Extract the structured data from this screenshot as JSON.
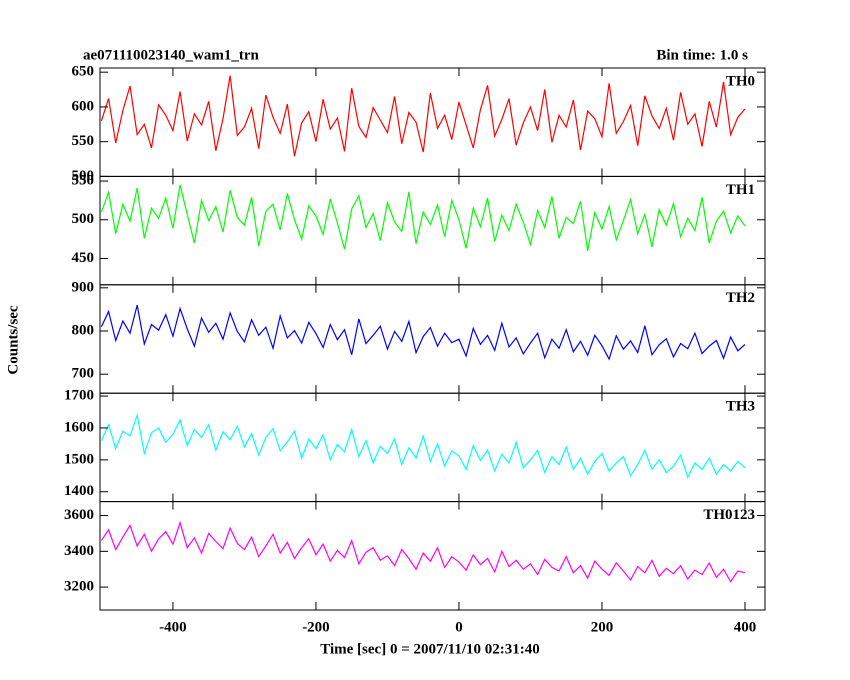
{
  "chart_data": {
    "type": "line",
    "title": "ae071110023140_wam1_trn",
    "subtitle": "Bin time: 1.0 s",
    "xlabel": "Time [sec] 0 = 2007/11/10 02:31:40",
    "ylabel": "Counts/sec",
    "xlim": [
      -502,
      428
    ],
    "xticks": [
      -400,
      -200,
      0,
      200,
      400
    ],
    "x": [
      -500,
      -490,
      -480,
      -470,
      -460,
      -450,
      -440,
      -430,
      -420,
      -410,
      -400,
      -390,
      -380,
      -370,
      -360,
      -350,
      -340,
      -330,
      -320,
      -310,
      -300,
      -290,
      -280,
      -270,
      -260,
      -250,
      -240,
      -230,
      -220,
      -210,
      -200,
      -190,
      -180,
      -170,
      -160,
      -150,
      -140,
      -130,
      -120,
      -110,
      -100,
      -90,
      -80,
      -70,
      -60,
      -50,
      -40,
      -30,
      -20,
      -10,
      0,
      10,
      20,
      30,
      40,
      50,
      60,
      70,
      80,
      90,
      100,
      110,
      120,
      130,
      140,
      150,
      160,
      170,
      180,
      190,
      200,
      210,
      220,
      230,
      240,
      250,
      260,
      270,
      280,
      290,
      300,
      310,
      320,
      330,
      340,
      350,
      360,
      370,
      380,
      390,
      400
    ],
    "series": [
      {
        "name": "TH0",
        "color": "#ff0000",
        "ylim": [
          500,
          656
        ],
        "yticks": [
          500,
          550,
          600,
          650
        ],
        "values": [
          580,
          612,
          548,
          595,
          630,
          560,
          575,
          541,
          603,
          588,
          566,
          622,
          551,
          590,
          574,
          608,
          537,
          583,
          645,
          559,
          571,
          598,
          540,
          617,
          585,
          562,
          604,
          529,
          577,
          593,
          550,
          611,
          568,
          584,
          536,
          627,
          572,
          556,
          599,
          581,
          563,
          615,
          547,
          592,
          578,
          535,
          620,
          569,
          588,
          553,
          607,
          574,
          541,
          596,
          631,
          558,
          582,
          612,
          545,
          577,
          600,
          566,
          625,
          549,
          588,
          571,
          610,
          538,
          594,
          583,
          557,
          634,
          562,
          579,
          602,
          544,
          616,
          587,
          569,
          598,
          552,
          621,
          575,
          590,
          543,
          608,
          571,
          636,
          560,
          585,
          597
        ]
      },
      {
        "name": "TH1",
        "color": "#00ff00",
        "ylim": [
          416,
          556
        ],
        "yticks": [
          450,
          500,
          550
        ],
        "values": [
          510,
          535,
          482,
          520,
          498,
          541,
          476,
          515,
          502,
          528,
          489,
          545,
          507,
          470,
          525,
          499,
          517,
          484,
          538,
          503,
          493,
          529,
          466,
          511,
          520,
          487,
          534,
          500,
          475,
          518,
          505,
          481,
          527,
          496,
          462,
          514,
          531,
          490,
          508,
          473,
          522,
          497,
          485,
          536,
          469,
          510,
          494,
          519,
          478,
          525,
          500,
          463,
          515,
          491,
          528,
          472,
          506,
          486,
          520,
          497,
          468,
          512,
          490,
          530,
          476,
          503,
          495,
          524,
          460,
          509,
          488,
          517,
          474,
          499,
          526,
          482,
          507,
          465,
          513,
          493,
          521,
          478,
          502,
          486,
          529,
          470,
          498,
          511,
          483,
          505,
          492
        ]
      },
      {
        "name": "TH2",
        "color": "#0000ff",
        "ylim": [
          656,
          907
        ],
        "yticks": [
          700,
          800,
          900
        ],
        "values": [
          810,
          845,
          778,
          823,
          795,
          860,
          770,
          815,
          802,
          838,
          788,
          852,
          805,
          765,
          830,
          797,
          818,
          781,
          842,
          799,
          775,
          826,
          790,
          809,
          760,
          835,
          784,
          801,
          772,
          820,
          794,
          762,
          815,
          780,
          803,
          745,
          828,
          771,
          790,
          811,
          758,
          799,
          776,
          822,
          750,
          787,
          808,
          765,
          795,
          773,
          781,
          742,
          806,
          769,
          790,
          755,
          818,
          763,
          784,
          747,
          772,
          795,
          738,
          781,
          760,
          803,
          752,
          776,
          744,
          790,
          766,
          735,
          789,
          758,
          777,
          750,
          812,
          745,
          768,
          782,
          740,
          771,
          759,
          795,
          748,
          765,
          778,
          737,
          786,
          754,
          769
        ]
      },
      {
        "name": "TH3",
        "color": "#00ffff",
        "ylim": [
          1369,
          1709
        ],
        "yticks": [
          1400,
          1500,
          1600,
          1700
        ],
        "values": [
          1560,
          1610,
          1535,
          1590,
          1575,
          1640,
          1520,
          1585,
          1600,
          1555,
          1580,
          1625,
          1545,
          1595,
          1570,
          1610,
          1530,
          1588,
          1563,
          1605,
          1540,
          1582,
          1515,
          1570,
          1598,
          1528,
          1556,
          1590,
          1505,
          1565,
          1535,
          1578,
          1500,
          1548,
          1525,
          1595,
          1510,
          1560,
          1490,
          1542,
          1520,
          1565,
          1485,
          1538,
          1505,
          1575,
          1495,
          1550,
          1480,
          1528,
          1512,
          1470,
          1545,
          1498,
          1530,
          1465,
          1518,
          1490,
          1555,
          1475,
          1500,
          1530,
          1460,
          1510,
          1485,
          1540,
          1470,
          1505,
          1455,
          1495,
          1520,
          1465,
          1490,
          1510,
          1450,
          1485,
          1530,
          1470,
          1500,
          1460,
          1480,
          1515,
          1445,
          1490,
          1470,
          1505,
          1455,
          1485,
          1465,
          1495,
          1475
        ]
      },
      {
        "name": "TH0123",
        "color": "#ff00ff",
        "ylim": [
          3072,
          3678
        ],
        "yticks": [
          3200,
          3400,
          3600
        ],
        "values": [
          3460,
          3520,
          3410,
          3480,
          3545,
          3430,
          3495,
          3400,
          3470,
          3510,
          3440,
          3560,
          3420,
          3475,
          3390,
          3500,
          3455,
          3415,
          3530,
          3445,
          3410,
          3480,
          3370,
          3430,
          3495,
          3390,
          3450,
          3360,
          3420,
          3470,
          3380,
          3440,
          3345,
          3405,
          3365,
          3460,
          3330,
          3395,
          3420,
          3350,
          3375,
          3320,
          3410,
          3360,
          3300,
          3390,
          3345,
          3420,
          3310,
          3370,
          3340,
          3295,
          3380,
          3325,
          3360,
          3285,
          3400,
          3315,
          3350,
          3300,
          3330,
          3270,
          3355,
          3310,
          3290,
          3370,
          3280,
          3320,
          3250,
          3345,
          3300,
          3265,
          3335,
          3290,
          3240,
          3315,
          3280,
          3350,
          3260,
          3305,
          3275,
          3320,
          3245,
          3295,
          3270,
          3335,
          3255,
          3300,
          3230,
          3290,
          3280
        ]
      }
    ]
  }
}
